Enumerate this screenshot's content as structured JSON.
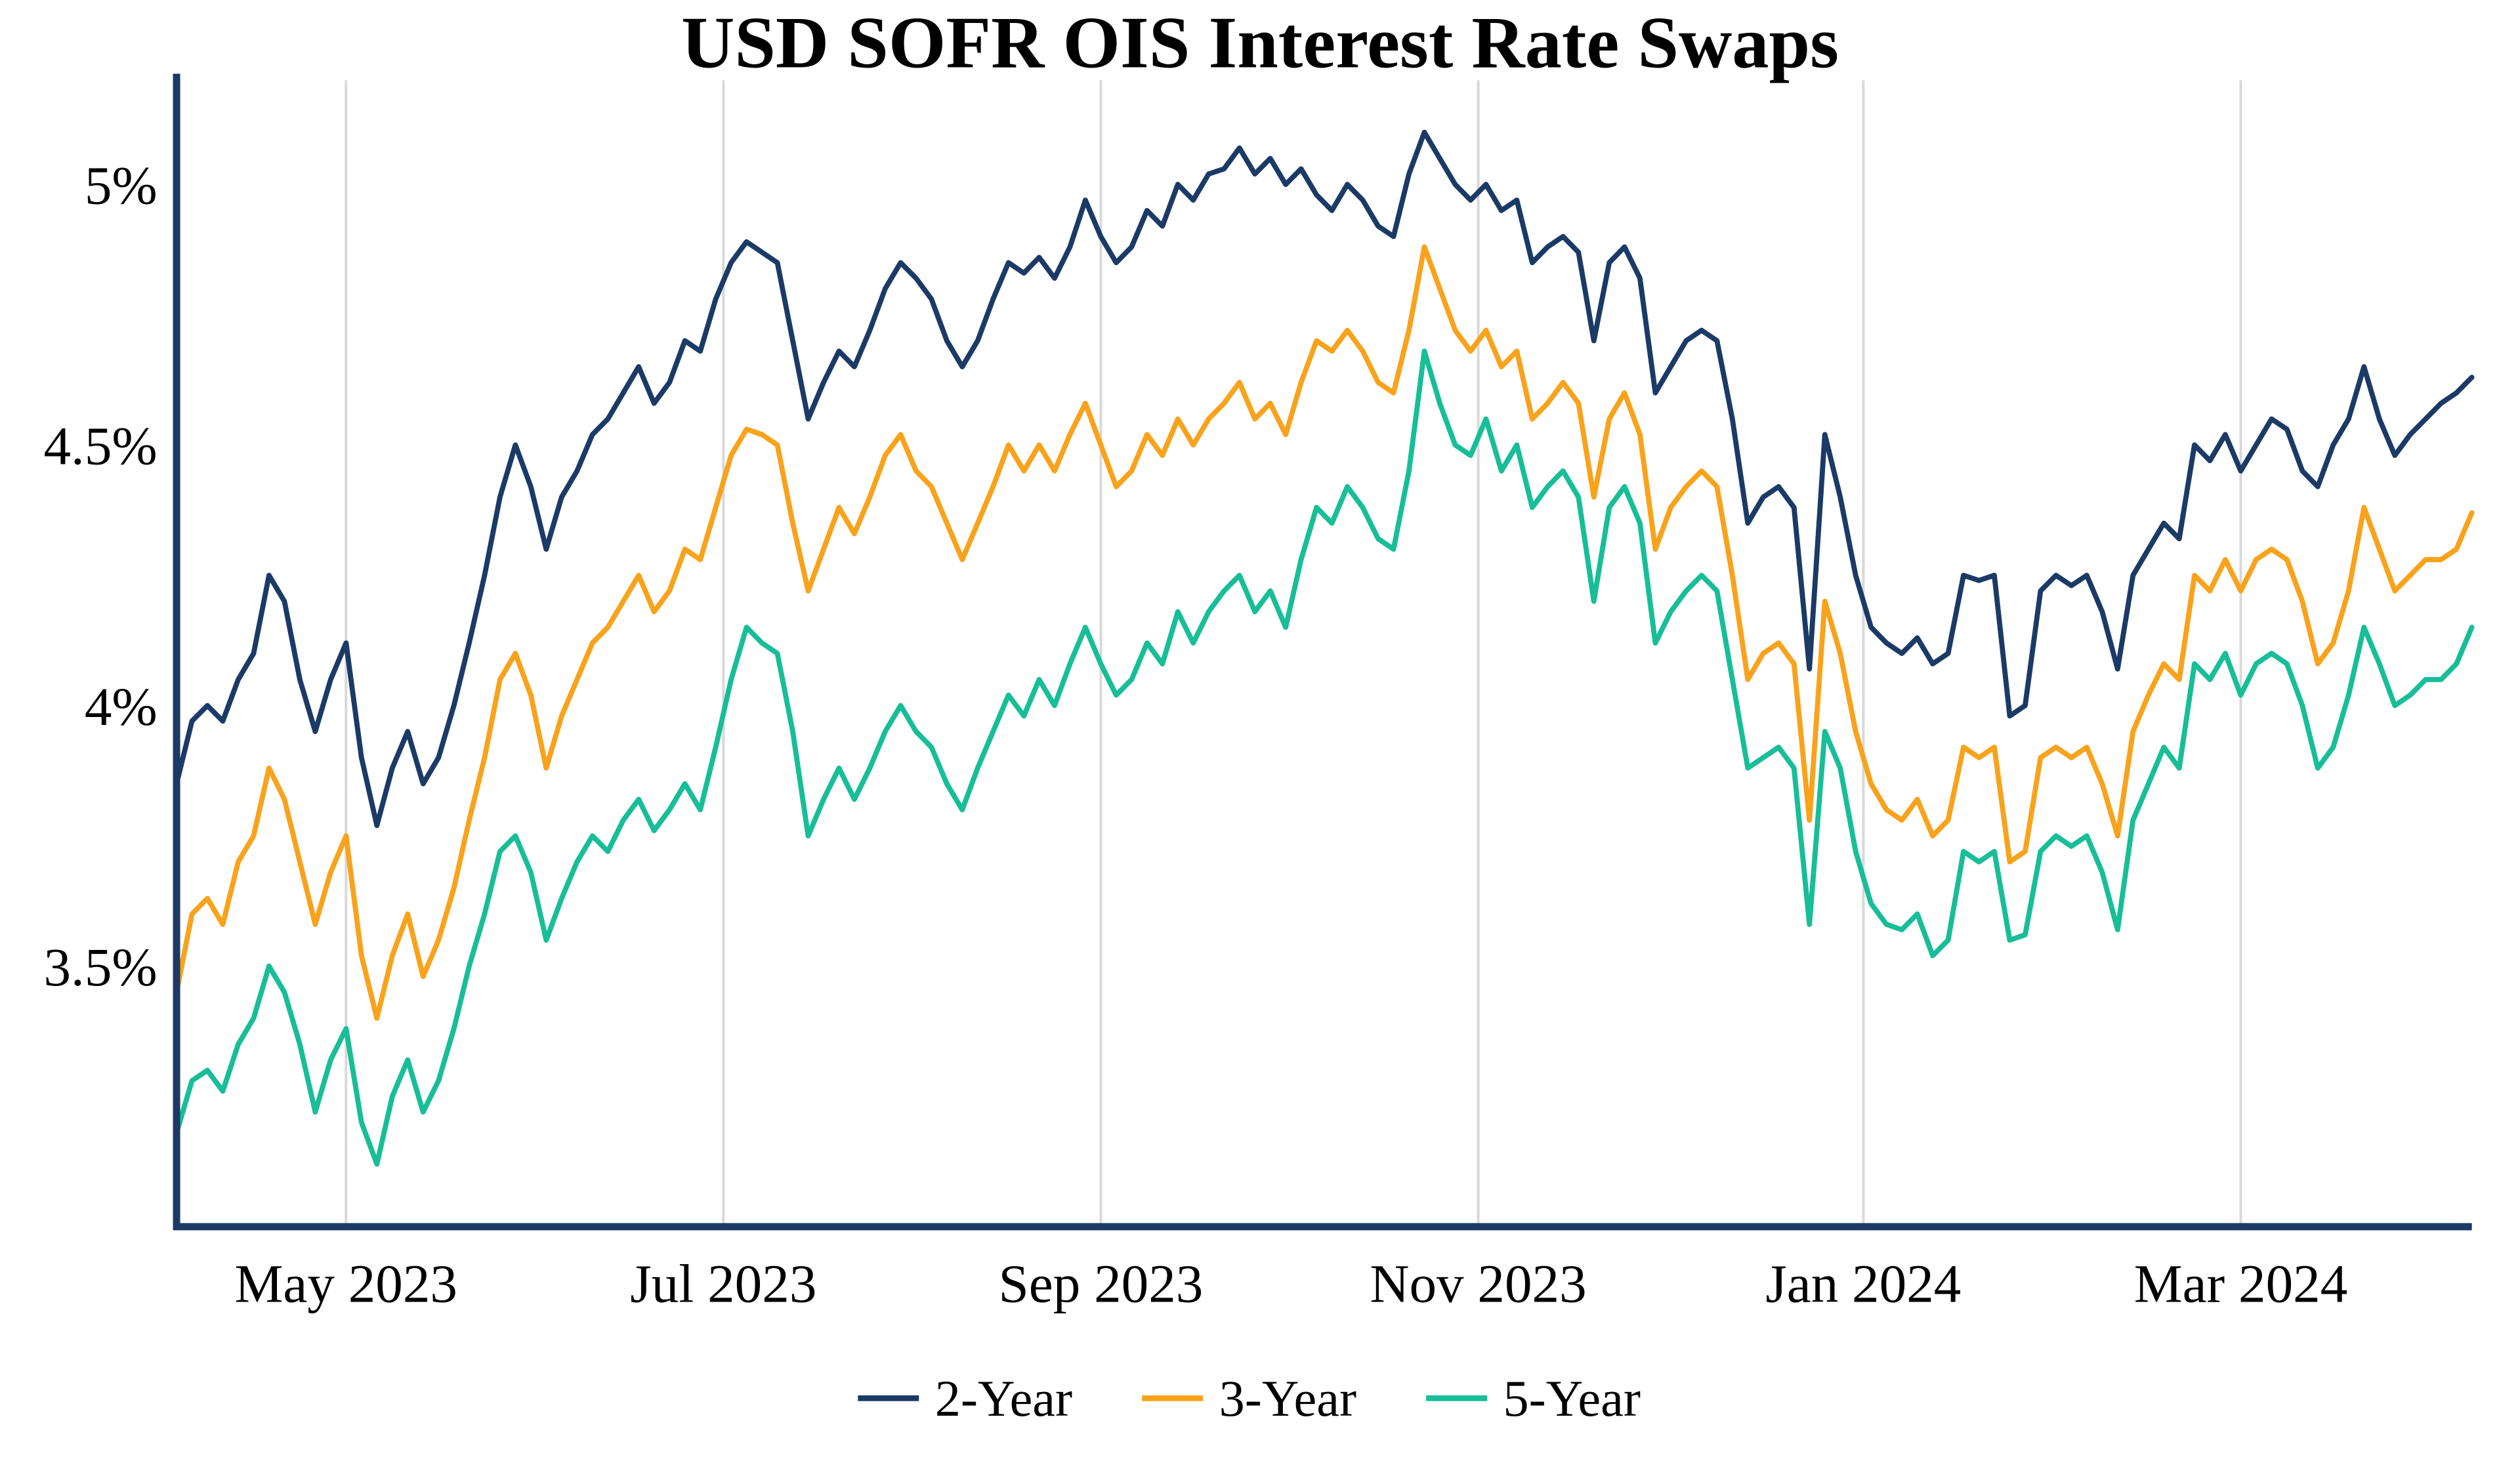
{
  "title": "USD SOFR OIS Interest Rate Swaps",
  "chart_data": {
    "type": "line",
    "title": "USD SOFR OIS Interest Rate Swaps",
    "xlabel": "",
    "ylabel": "",
    "grid": "vertical-only",
    "legend_position": "bottom-center",
    "axis_color": "#1B3A66",
    "grid_color": "#D8D8D8",
    "text_color": "#000000",
    "ylim": [
      3.0,
      5.2
    ],
    "y_ticks": [
      {
        "value": 3.5,
        "label": "3.5%"
      },
      {
        "value": 4.0,
        "label": "4%"
      },
      {
        "value": 4.5,
        "label": "4.5%"
      },
      {
        "value": 5.0,
        "label": "5%"
      }
    ],
    "x_ticks": [
      {
        "pos": 11,
        "label": "May 2023"
      },
      {
        "pos": 35.5,
        "label": "Jul 2023"
      },
      {
        "pos": 60,
        "label": "Sep 2023"
      },
      {
        "pos": 84.5,
        "label": "Nov 2023"
      },
      {
        "pos": 109.5,
        "label": "Jan 2024"
      },
      {
        "pos": 134,
        "label": "Mar 2024"
      }
    ],
    "series": [
      {
        "name": "2-Year",
        "color": "#1B3A66",
        "values": [
          3.85,
          3.97,
          4.0,
          3.97,
          4.05,
          4.1,
          4.25,
          4.2,
          4.05,
          3.95,
          4.05,
          4.12,
          3.9,
          3.77,
          3.88,
          3.95,
          3.85,
          3.9,
          4.0,
          4.12,
          4.25,
          4.4,
          4.5,
          4.42,
          4.3,
          4.4,
          4.45,
          4.52,
          4.55,
          4.6,
          4.65,
          4.58,
          4.62,
          4.7,
          4.68,
          4.78,
          4.85,
          4.89,
          4.87,
          4.85,
          4.7,
          4.55,
          4.62,
          4.68,
          4.65,
          4.72,
          4.8,
          4.85,
          4.82,
          4.78,
          4.7,
          4.65,
          4.7,
          4.78,
          4.85,
          4.83,
          4.86,
          4.82,
          4.88,
          4.97,
          4.9,
          4.85,
          4.88,
          4.95,
          4.92,
          5.0,
          4.97,
          5.02,
          5.03,
          5.07,
          5.02,
          5.05,
          5.0,
          5.03,
          4.98,
          4.95,
          5.0,
          4.97,
          4.92,
          4.9,
          5.02,
          5.1,
          5.05,
          5.0,
          4.97,
          5.0,
          4.95,
          4.97,
          4.85,
          4.88,
          4.9,
          4.87,
          4.7,
          4.85,
          4.88,
          4.82,
          4.6,
          4.65,
          4.7,
          4.72,
          4.7,
          4.55,
          4.35,
          4.4,
          4.42,
          4.38,
          4.07,
          4.52,
          4.4,
          4.25,
          4.15,
          4.12,
          4.1,
          4.13,
          4.08,
          4.1,
          4.25,
          4.24,
          4.25,
          3.98,
          4.0,
          4.22,
          4.25,
          4.23,
          4.25,
          4.18,
          4.07,
          4.25,
          4.3,
          4.35,
          4.32,
          4.5,
          4.47,
          4.52,
          4.45,
          4.5,
          4.55,
          4.53,
          4.45,
          4.42,
          4.5,
          4.55,
          4.65,
          4.55,
          4.48,
          4.52,
          4.55,
          4.58,
          4.6,
          4.63
        ]
      },
      {
        "name": "3-Year",
        "color": "#F9A21B",
        "values": [
          3.45,
          3.6,
          3.63,
          3.58,
          3.7,
          3.75,
          3.88,
          3.82,
          3.7,
          3.58,
          3.68,
          3.75,
          3.52,
          3.4,
          3.52,
          3.6,
          3.48,
          3.55,
          3.65,
          3.78,
          3.9,
          4.05,
          4.1,
          4.02,
          3.88,
          3.98,
          4.05,
          4.12,
          4.15,
          4.2,
          4.25,
          4.18,
          4.22,
          4.3,
          4.28,
          4.38,
          4.48,
          4.53,
          4.52,
          4.5,
          4.35,
          4.22,
          4.3,
          4.38,
          4.33,
          4.4,
          4.48,
          4.52,
          4.45,
          4.42,
          4.35,
          4.28,
          4.35,
          4.42,
          4.5,
          4.45,
          4.5,
          4.45,
          4.52,
          4.58,
          4.5,
          4.42,
          4.45,
          4.52,
          4.48,
          4.55,
          4.5,
          4.55,
          4.58,
          4.62,
          4.55,
          4.58,
          4.52,
          4.62,
          4.7,
          4.68,
          4.72,
          4.68,
          4.62,
          4.6,
          4.72,
          4.88,
          4.8,
          4.72,
          4.68,
          4.72,
          4.65,
          4.68,
          4.55,
          4.58,
          4.62,
          4.58,
          4.4,
          4.55,
          4.6,
          4.52,
          4.3,
          4.38,
          4.42,
          4.45,
          4.42,
          4.25,
          4.05,
          4.1,
          4.12,
          4.08,
          3.78,
          4.2,
          4.1,
          3.95,
          3.85,
          3.8,
          3.78,
          3.82,
          3.75,
          3.78,
          3.92,
          3.9,
          3.92,
          3.7,
          3.72,
          3.9,
          3.92,
          3.9,
          3.92,
          3.85,
          3.75,
          3.95,
          4.02,
          4.08,
          4.05,
          4.25,
          4.22,
          4.28,
          4.22,
          4.28,
          4.3,
          4.28,
          4.2,
          4.08,
          4.12,
          4.22,
          4.38,
          4.3,
          4.22,
          4.25,
          4.28,
          4.28,
          4.3,
          4.37
        ]
      },
      {
        "name": "5-Year",
        "color": "#17BE97",
        "values": [
          3.18,
          3.28,
          3.3,
          3.26,
          3.35,
          3.4,
          3.5,
          3.45,
          3.35,
          3.22,
          3.32,
          3.38,
          3.2,
          3.12,
          3.25,
          3.32,
          3.22,
          3.28,
          3.38,
          3.5,
          3.6,
          3.72,
          3.75,
          3.68,
          3.55,
          3.63,
          3.7,
          3.75,
          3.72,
          3.78,
          3.82,
          3.76,
          3.8,
          3.85,
          3.8,
          3.92,
          4.05,
          4.15,
          4.12,
          4.1,
          3.95,
          3.75,
          3.82,
          3.88,
          3.82,
          3.88,
          3.95,
          4.0,
          3.95,
          3.92,
          3.85,
          3.8,
          3.88,
          3.95,
          4.02,
          3.98,
          4.05,
          4.0,
          4.08,
          4.15,
          4.08,
          4.02,
          4.05,
          4.12,
          4.08,
          4.18,
          4.12,
          4.18,
          4.22,
          4.25,
          4.18,
          4.22,
          4.15,
          4.28,
          4.38,
          4.35,
          4.42,
          4.38,
          4.32,
          4.3,
          4.45,
          4.68,
          4.58,
          4.5,
          4.48,
          4.55,
          4.45,
          4.5,
          4.38,
          4.42,
          4.45,
          4.4,
          4.2,
          4.38,
          4.42,
          4.35,
          4.12,
          4.18,
          4.22,
          4.25,
          4.22,
          4.05,
          3.88,
          3.9,
          3.92,
          3.88,
          3.58,
          3.95,
          3.88,
          3.72,
          3.62,
          3.58,
          3.57,
          3.6,
          3.52,
          3.55,
          3.72,
          3.7,
          3.72,
          3.55,
          3.56,
          3.72,
          3.75,
          3.73,
          3.75,
          3.68,
          3.57,
          3.78,
          3.85,
          3.92,
          3.88,
          4.08,
          4.05,
          4.1,
          4.02,
          4.08,
          4.1,
          4.08,
          4.0,
          3.88,
          3.92,
          4.02,
          4.15,
          4.08,
          4.0,
          4.02,
          4.05,
          4.05,
          4.08,
          4.15
        ]
      }
    ]
  }
}
